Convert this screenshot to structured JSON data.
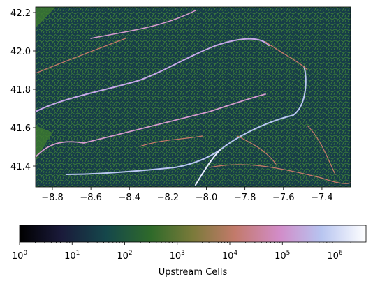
{
  "map": {
    "xlim": [
      -8.887,
      -7.251
    ],
    "ylim": [
      41.291,
      42.229
    ],
    "xticks": [
      {
        "value": -8.8,
        "label": "−8.8"
      },
      {
        "value": -8.6,
        "label": "−8.6"
      },
      {
        "value": -8.4,
        "label": "−8.4"
      },
      {
        "value": -8.2,
        "label": "−8.2"
      },
      {
        "value": -8.0,
        "label": "−8.0"
      },
      {
        "value": -7.8,
        "label": "−7.8"
      },
      {
        "value": -7.6,
        "label": "−7.6"
      },
      {
        "value": -7.4,
        "label": "−7.4"
      }
    ],
    "yticks": [
      {
        "value": 41.4,
        "label": "41.4"
      },
      {
        "value": 41.6,
        "label": "41.6"
      },
      {
        "value": 41.8,
        "label": "41.8"
      },
      {
        "value": 42.0,
        "label": "42.0"
      },
      {
        "value": 42.2,
        "label": "42.2"
      }
    ],
    "colorbar": {
      "label": "Upstream Cells",
      "colormap": "cubehelix",
      "log_scale": true,
      "clim": [
        1,
        3900000
      ],
      "ticks": [
        {
          "value": 1,
          "base": "10",
          "exponent": "0"
        },
        {
          "value": 10,
          "base": "10",
          "exponent": "1"
        },
        {
          "value": 100,
          "base": "10",
          "exponent": "2"
        },
        {
          "value": 1000,
          "base": "10",
          "exponent": "3"
        },
        {
          "value": 10000,
          "base": "10",
          "exponent": "4"
        },
        {
          "value": 100000,
          "base": "10",
          "exponent": "5"
        },
        {
          "value": 1000000,
          "base": "10",
          "exponent": "6"
        }
      ]
    }
  }
}
